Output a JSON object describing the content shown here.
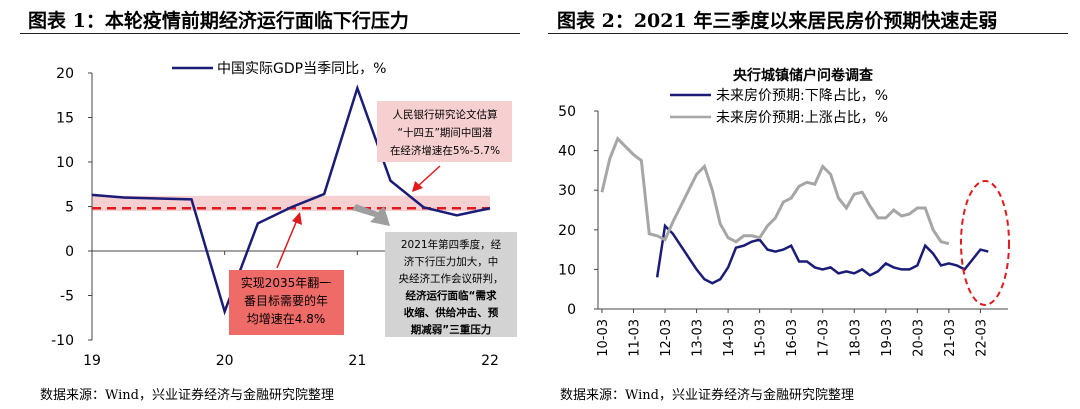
{
  "left": {
    "title": "图表 1：本轮疫情前期经济运行面临下行压力",
    "source": "数据来源：Wind，兴业证券经济与金融研究院整理",
    "chart_data": {
      "type": "line",
      "series": [
        {
          "name": "中国实际GDP当季同比，%",
          "color": "#1b1b78",
          "x": [
            2019.0,
            2019.25,
            2019.5,
            2019.75,
            2020.0,
            2020.25,
            2020.5,
            2020.75,
            2021.0,
            2021.25,
            2021.5,
            2021.75,
            2022.0
          ],
          "values": [
            6.3,
            6.0,
            5.9,
            5.8,
            -6.8,
            3.1,
            4.9,
            6.4,
            18.3,
            7.9,
            4.9,
            4.0,
            4.8
          ]
        }
      ],
      "reference_line": {
        "label": "实现2035年翻一番目标需要的年均增速在4.8%",
        "value": 4.8,
        "color": "#e0191c"
      },
      "band": {
        "label": "人民银行研究论文估算“十四五”期间中国潜在经济增速在5%-5.7%",
        "range": [
          5.0,
          5.7
        ]
      },
      "x_ticks": [
        {
          "v": 2019,
          "label": "19"
        },
        {
          "v": 2020,
          "label": "20"
        },
        {
          "v": 2021,
          "label": "21"
        },
        {
          "v": 2022,
          "label": "22"
        }
      ],
      "ylim": [
        -10,
        20
      ],
      "y_ticks": [
        -10,
        -5,
        0,
        5,
        10,
        15,
        20
      ],
      "annotations": {
        "band_note": [
          "人民银行研究论文估算",
          "“十四五”期间中国潜",
          "在经济增速在5%-5.7%"
        ],
        "target_note": [
          "实现2035年翻一",
          "番目标需要的年",
          "均增速在4.8%"
        ],
        "q4_note": [
          "2021年第四季度，经",
          "济下行压力加大，中",
          "央经济工作会议研判，",
          "经济运行面临“需求",
          "收缩、供给冲击、预",
          "期减弱”三重压力"
        ]
      }
    }
  },
  "right": {
    "title": "图表 2：2021 年三季度以来居民房价预期快速走弱",
    "source": "数据来源：Wind，兴业证券经济与金融研究院整理",
    "chart_data": {
      "type": "line",
      "title": "央行城镇储户问卷调查",
      "x_start": "2010-Q1",
      "period": "quarterly",
      "series": [
        {
          "name": "未来房价预期:下降占比，%",
          "color": "#1b1b78",
          "values": [
            null,
            null,
            null,
            null,
            null,
            null,
            null,
            8,
            21,
            19,
            16,
            13,
            10,
            7.5,
            6.5,
            7.5,
            10.5,
            15.5,
            16,
            17,
            17.5,
            15,
            14.5,
            15,
            16,
            12,
            12,
            10.5,
            10,
            10.5,
            9,
            9.5,
            9,
            10,
            8.5,
            9.5,
            11.5,
            10.5,
            10,
            10,
            11,
            16,
            14,
            11,
            11.5,
            11,
            10,
            12.5,
            15,
            14.5
          ]
        },
        {
          "name": "未来房价预期:上涨占比，%",
          "color": "#a6a6a6",
          "values": [
            29.5,
            38,
            43,
            41,
            39,
            37.5,
            19,
            18.5,
            17.5,
            22,
            26,
            30,
            34,
            36,
            30,
            21.5,
            18,
            17,
            18.5,
            18.5,
            18,
            21,
            23,
            27,
            28,
            31,
            32,
            31.5,
            36,
            34,
            28,
            25.5,
            29,
            29.5,
            26,
            23,
            23,
            25,
            23.5,
            24,
            25.5,
            25.5,
            20,
            17,
            16.5
          ]
        }
      ],
      "x_labels": [
        "10-03",
        "11-03",
        "12-03",
        "13-03",
        "14-03",
        "15-03",
        "16-03",
        "17-03",
        "18-03",
        "19-03",
        "20-03",
        "21-03",
        "22-03"
      ],
      "ylim": [
        0,
        50
      ],
      "y_ticks": [
        0,
        10,
        20,
        30,
        40,
        50
      ]
    }
  }
}
